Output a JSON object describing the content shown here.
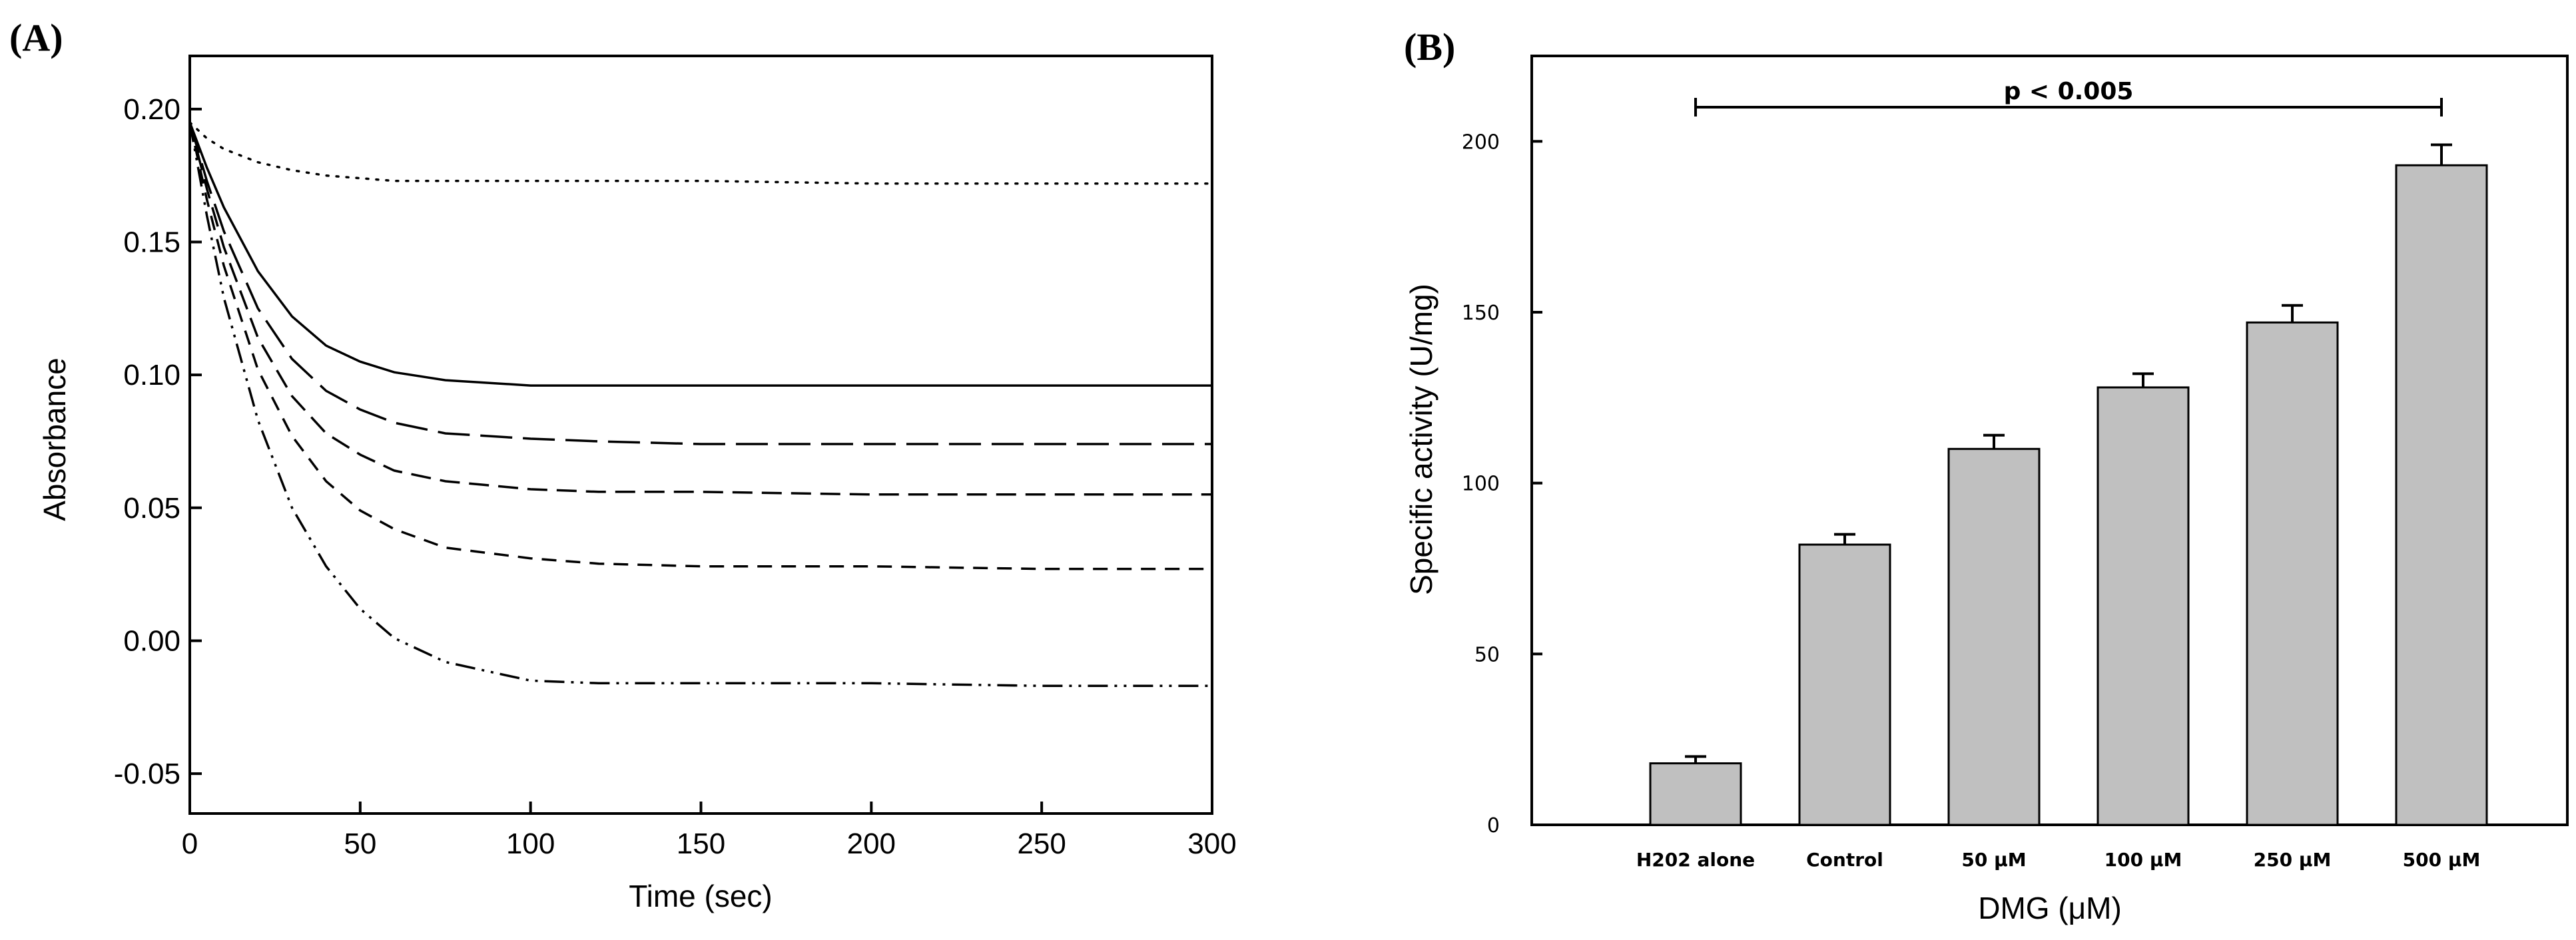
{
  "chart_data": [
    {
      "panel_label": "(A)",
      "type": "line",
      "xlabel": "Time (sec)",
      "ylabel": "Absorbance",
      "xlim": [
        0,
        300
      ],
      "ylim": [
        -0.065,
        0.22
      ],
      "xticks": [
        "0",
        "50",
        "100",
        "150",
        "200",
        "250",
        "300"
      ],
      "yticks": [
        "-0.05",
        "0.00",
        "0.05",
        "0.10",
        "0.15",
        "0.20"
      ],
      "x": [
        0,
        5,
        10,
        20,
        30,
        40,
        50,
        60,
        75,
        100,
        120,
        150,
        200,
        250,
        300
      ],
      "series": [
        {
          "style": "dotted",
          "values": [
            0.195,
            0.189,
            0.185,
            0.18,
            0.177,
            0.175,
            0.174,
            0.173,
            0.173,
            0.173,
            0.173,
            0.173,
            0.172,
            0.172,
            0.172
          ]
        },
        {
          "style": "solid",
          "values": [
            0.195,
            0.178,
            0.163,
            0.139,
            0.122,
            0.111,
            0.105,
            0.101,
            0.098,
            0.096,
            0.096,
            0.096,
            0.096,
            0.096,
            0.096
          ]
        },
        {
          "style": "long-dash",
          "values": [
            0.195,
            0.173,
            0.154,
            0.125,
            0.106,
            0.094,
            0.087,
            0.082,
            0.078,
            0.076,
            0.075,
            0.074,
            0.074,
            0.074,
            0.074
          ]
        },
        {
          "style": "dash",
          "values": [
            0.195,
            0.17,
            0.148,
            0.114,
            0.092,
            0.078,
            0.07,
            0.064,
            0.06,
            0.057,
            0.056,
            0.056,
            0.055,
            0.055,
            0.055
          ]
        },
        {
          "style": "short-dash",
          "values": [
            0.195,
            0.166,
            0.141,
            0.102,
            0.077,
            0.06,
            0.049,
            0.042,
            0.035,
            0.031,
            0.029,
            0.028,
            0.028,
            0.027,
            0.027
          ]
        },
        {
          "style": "dash-dot-dot",
          "values": [
            0.195,
            0.16,
            0.129,
            0.083,
            0.05,
            0.028,
            0.012,
            0.001,
            -0.008,
            -0.015,
            -0.016,
            -0.016,
            -0.016,
            -0.017,
            -0.017
          ]
        }
      ],
      "grid": false
    },
    {
      "panel_label": "(B)",
      "type": "bar",
      "xlabel": "DMG (μM)",
      "ylabel": "Specific activity (U/mg)",
      "ylim": [
        0,
        225
      ],
      "yticks": [
        "0",
        "50",
        "100",
        "150",
        "200"
      ],
      "categories": [
        "H202 alone",
        "Control",
        "50 μM",
        "100 μM",
        "250 μM",
        "500 μM"
      ],
      "values": [
        18,
        82,
        110,
        128,
        147,
        193
      ],
      "errors": [
        2,
        3,
        4,
        4,
        5,
        6
      ],
      "annotation": {
        "text": "p < 0.005",
        "from_category": 0,
        "to_category": 5,
        "y": 210
      },
      "grid": false
    }
  ]
}
